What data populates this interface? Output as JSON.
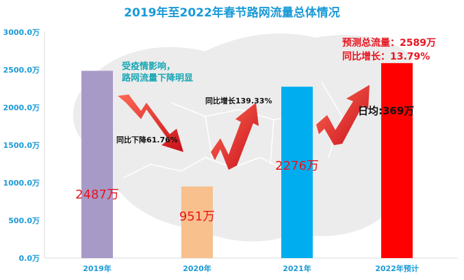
{
  "chart_data": {
    "type": "bar",
    "title": "2019年至2022年春节路网流量总体情况",
    "categories": [
      "2019年",
      "2020年",
      "2021年",
      "2022年预计"
    ],
    "values": [
      2487,
      951,
      2276,
      2589
    ],
    "value_labels": [
      "2487万",
      "951万",
      "2276万",
      ""
    ],
    "bar_colors": [
      "#a79ac7",
      "#f8c08c",
      "#00aeef",
      "#ff0000"
    ],
    "ylim": [
      0,
      3000
    ],
    "yticks": [
      "0.0万",
      "500.0万",
      "1000.0万",
      "1500.0万",
      "2000.0万",
      "2500.0万",
      "3000.0万"
    ],
    "grid": false,
    "annotations": {
      "covid_line1": "受疫情影响，",
      "covid_line2": "路网流量下降明显",
      "drop": "同比下降61.76%",
      "rise": "同比增长139.33%",
      "forecast_total": "预测总流量：2589万",
      "forecast_growth": "同比增长：13.79%",
      "daily_avg": "日均:369万"
    },
    "colors": {
      "title": "#1a9ad6",
      "axis": "#1a9ad6",
      "value_label": "#e8141f",
      "arrow": "#e31e24"
    }
  }
}
